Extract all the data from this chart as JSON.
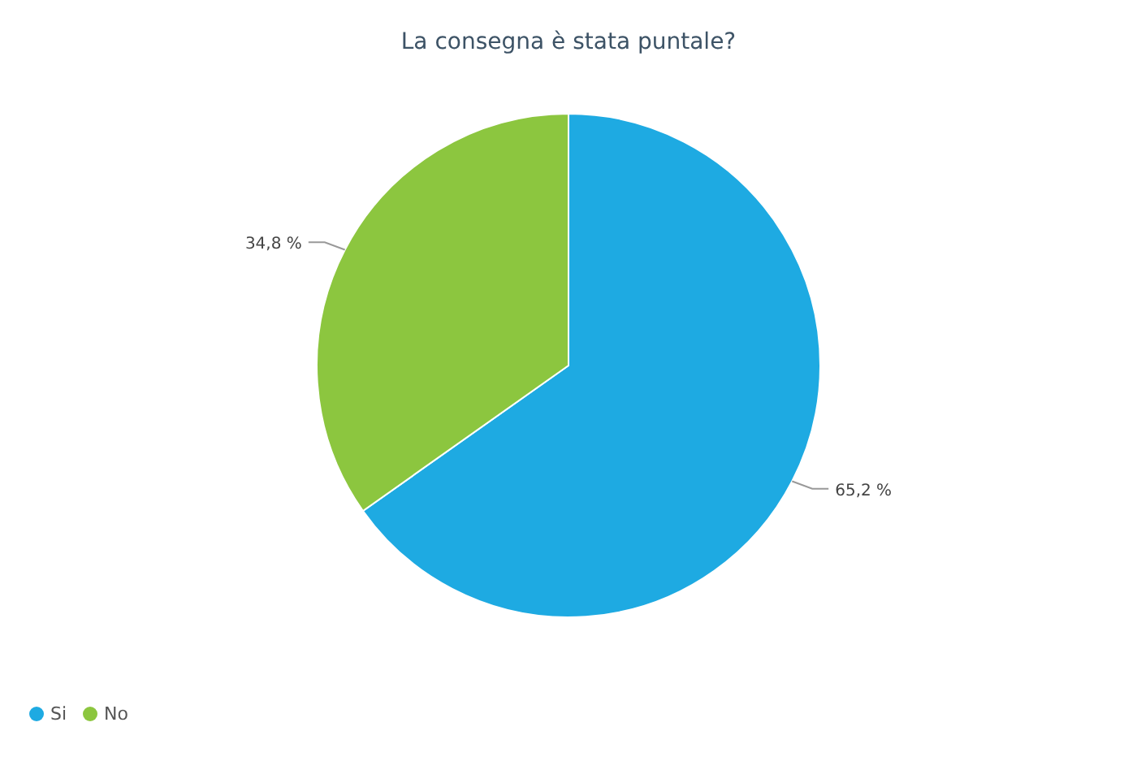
{
  "chart_data": {
    "type": "pie",
    "title": "La consegna è stata puntale?",
    "categories": [
      "Si",
      "No"
    ],
    "values": [
      65.2,
      34.8
    ],
    "colors": [
      "#1eaae2",
      "#8cc63f"
    ],
    "value_labels": [
      "65,2 %",
      "34,8 %"
    ],
    "legend": "bottom left"
  }
}
